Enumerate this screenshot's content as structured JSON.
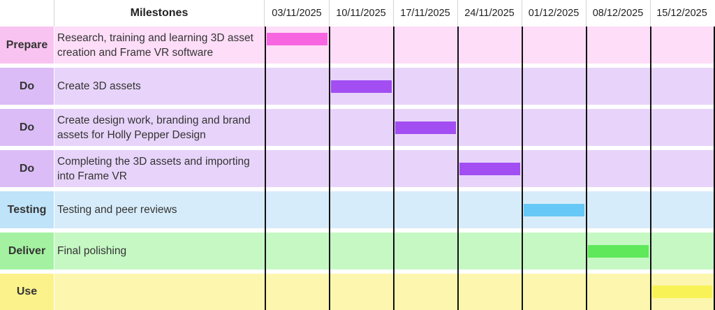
{
  "chart_data": {
    "type": "gantt",
    "header": {
      "milestones_label": "Milestones"
    },
    "weeks": [
      "03/11/2025",
      "10/11/2025",
      "17/11/2025",
      "24/11/2025",
      "01/12/2025",
      "08/12/2025",
      "15/12/2025"
    ],
    "rows": [
      {
        "phase": "Prepare",
        "task": "Research, training and learning 3D asset creation and Frame VR software",
        "start_week": 0,
        "end_week": 1,
        "bar_color": "#f766e0",
        "row_color": "#fdddf8",
        "phase_color": "#f8c3f0"
      },
      {
        "phase": "Do",
        "task": "Create 3D assets",
        "start_week": 1,
        "end_week": 2,
        "bar_color": "#a24ef2",
        "row_color": "#e8d4fa",
        "phase_color": "#dbbcf6"
      },
      {
        "phase": "Do",
        "task": "Create design work, branding and brand assets for Holly Pepper Design",
        "start_week": 2,
        "end_week": 3,
        "bar_color": "#a24ef2",
        "row_color": "#e8d4fa",
        "phase_color": "#dbbcf6"
      },
      {
        "phase": "Do",
        "task": "Completing the 3D assets and importing into Frame VR",
        "start_week": 3,
        "end_week": 4,
        "bar_color": "#a24ef2",
        "row_color": "#e8d4fa",
        "phase_color": "#dbbcf6"
      },
      {
        "phase": "Testing",
        "task": "Testing and peer reviews",
        "start_week": 4,
        "end_week": 5,
        "bar_color": "#66c8f6",
        "row_color": "#d7ecfa",
        "phase_color": "#bfe3f8"
      },
      {
        "phase": "Deliver",
        "task": "Final polishing",
        "start_week": 5,
        "end_week": 6,
        "bar_color": "#5ee85a",
        "row_color": "#c6f8c4",
        "phase_color": "#a4f2a1"
      },
      {
        "phase": "Use",
        "task": "",
        "start_week": 6,
        "end_week": 7,
        "bar_color": "#f9f257",
        "row_color": "#fcf6ae",
        "phase_color": "#fbf28c"
      }
    ]
  }
}
